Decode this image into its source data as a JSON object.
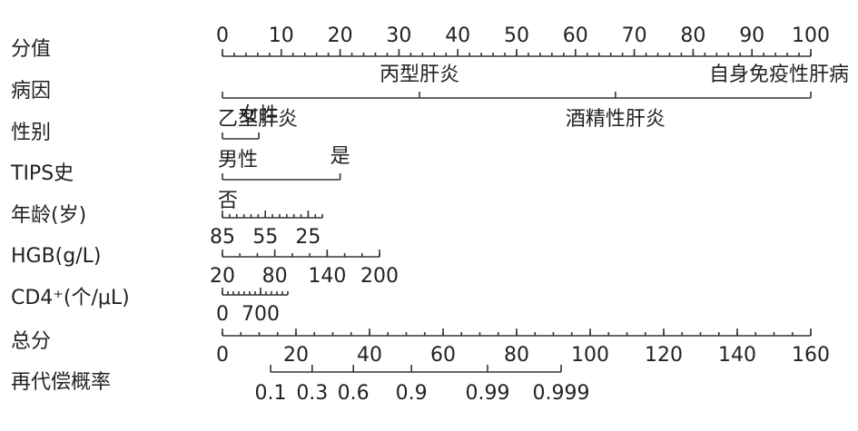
{
  "chart_data": {
    "type": "nomogram",
    "rows": [
      {
        "label": "分值",
        "scale": [
          0,
          100
        ],
        "ticks": [
          0,
          10,
          20,
          30,
          40,
          50,
          60,
          70,
          80,
          90,
          100
        ],
        "minor_step": 2
      },
      {
        "label": "病因",
        "levels": [
          {
            "label": "乙型肝炎",
            "points": 0
          },
          {
            "label": "丙型肝炎",
            "points": 33.5
          },
          {
            "label": "酒精性肝炎",
            "points": 66.8
          },
          {
            "label": "自身免疫性肝病",
            "points": 100
          }
        ]
      },
      {
        "label": "性别",
        "levels": [
          {
            "label": "男性",
            "points": 0
          },
          {
            "label": "女性",
            "points": 6.2
          }
        ]
      },
      {
        "label": "TIPS史",
        "levels": [
          {
            "label": "否",
            "points": 0
          },
          {
            "label": "是",
            "points": 20
          }
        ]
      },
      {
        "label": "年龄(岁)",
        "scale": [
          85,
          15
        ],
        "points_range": [
          0,
          17
        ],
        "ticks": [
          85,
          55,
          25
        ],
        "minor_step": 5
      },
      {
        "label": "HGB(g/L)",
        "scale": [
          20,
          200
        ],
        "points_range": [
          0,
          26.7
        ],
        "ticks": [
          20,
          80,
          140,
          200
        ],
        "minor_step": 20
      },
      {
        "label": "CD4⁺(个/μL)",
        "scale": [
          0,
          1200
        ],
        "points_range": [
          0,
          11.1
        ],
        "ticks": [
          0,
          700
        ],
        "minor_step": 100
      },
      {
        "label": "总分",
        "scale": [
          0,
          160
        ],
        "ticks": [
          0,
          20,
          40,
          60,
          80,
          100,
          120,
          140,
          160
        ],
        "minor_step": 5
      },
      {
        "label": "再代偿概率",
        "ticks": [
          0.1,
          0.3,
          0.6,
          0.9,
          0.99,
          0.999
        ],
        "total_points": [
          13.1,
          24.4,
          35.6,
          51.4,
          72.1,
          92.1
        ]
      }
    ]
  }
}
